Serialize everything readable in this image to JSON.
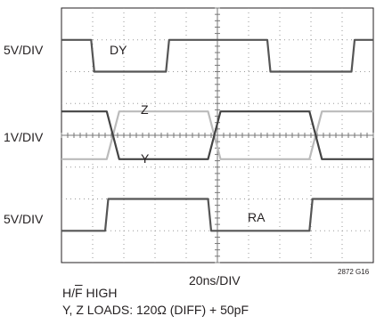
{
  "chart_data": {
    "type": "line",
    "scope_display": {
      "divisions_x": 10,
      "divisions_y": 8,
      "subdivisions": 5,
      "grid": true,
      "background": "#ffffff",
      "grid_color": "#9a9a9a"
    },
    "channels": [
      {
        "name": "DY",
        "scale": "5V/DIV",
        "color": "#555555",
        "high_div": 1.0,
        "low_div": 0.0,
        "x": [
          0,
          0.95,
          1.05,
          3.35,
          3.45,
          6.6,
          6.7,
          9.3,
          9.4,
          10
        ],
        "y": [
          1,
          1,
          0,
          0,
          1,
          1,
          0,
          0,
          1,
          1
        ]
      },
      {
        "name": "Z",
        "scale": "1V/DIV",
        "color": "#bbbbbb",
        "high_div": 0.75,
        "low_div": -0.75,
        "x": [
          0,
          1.45,
          1.85,
          4.7,
          5.1,
          7.95,
          8.35,
          10
        ],
        "y": [
          -0.75,
          -0.75,
          0.75,
          0.75,
          -0.75,
          -0.75,
          0.75,
          0.75
        ]
      },
      {
        "name": "Y",
        "scale": "1V/DIV",
        "color": "#444444",
        "high_div": 0.75,
        "low_div": -0.75,
        "x": [
          0,
          1.45,
          1.85,
          4.7,
          5.1,
          7.95,
          8.35,
          10
        ],
        "y": [
          0.75,
          0.75,
          -0.75,
          -0.75,
          0.75,
          0.75,
          -0.75,
          -0.75
        ]
      },
      {
        "name": "RA",
        "scale": "5V/DIV",
        "color": "#555555",
        "high_div": 0.7,
        "low_div": -0.3,
        "x": [
          0,
          1.4,
          1.5,
          4.7,
          4.8,
          7.95,
          8.05,
          10
        ],
        "y": [
          -0.3,
          -0.3,
          0.7,
          0.7,
          -0.3,
          -0.3,
          0.7,
          0.7
        ]
      }
    ],
    "scale_labels": [
      "5V/DIV",
      "1V/DIV",
      "5V/DIV"
    ],
    "xlabel": "20ns/DIV",
    "figure_id": "2872 G16",
    "notes": [
      "H/F HIGH",
      "Y, Z LOADS: 120Ω (DIFF) + 50pF"
    ]
  }
}
